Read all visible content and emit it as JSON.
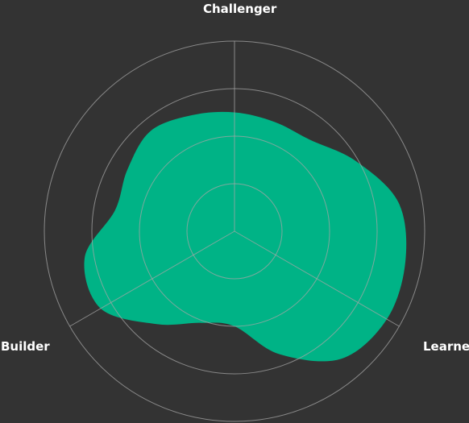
{
  "chart_data": {
    "type": "radar",
    "axes": [
      "Challenger",
      "Learner",
      "Builder"
    ],
    "max": 4,
    "rings": 4,
    "grid": true,
    "series": [
      {
        "fill": "#00b386"
      }
    ],
    "shape_radii": [
      {
        "angle_deg": 0,
        "value": 2.5
      },
      {
        "angle_deg": 20,
        "value": 2.45
      },
      {
        "angle_deg": 40,
        "value": 2.5
      },
      {
        "angle_deg": 60,
        "value": 2.95
      },
      {
        "angle_deg": 80,
        "value": 3.5
      },
      {
        "angle_deg": 100,
        "value": 3.65
      },
      {
        "angle_deg": 120,
        "value": 3.7
      },
      {
        "angle_deg": 140,
        "value": 3.5
      },
      {
        "angle_deg": 160,
        "value": 2.75
      },
      {
        "angle_deg": 180,
        "value": 2.0
      },
      {
        "angle_deg": 200,
        "value": 2.05
      },
      {
        "angle_deg": 220,
        "value": 2.55
      },
      {
        "angle_deg": 240,
        "value": 3.25
      },
      {
        "angle_deg": 260,
        "value": 3.2
      },
      {
        "angle_deg": 280,
        "value": 2.55
      },
      {
        "angle_deg": 300,
        "value": 2.6
      },
      {
        "angle_deg": 320,
        "value": 2.75
      },
      {
        "angle_deg": 340,
        "value": 2.6
      }
    ]
  },
  "colors": {
    "background": "#333333",
    "grid": "#a6a6a6",
    "fill": "#00b386",
    "label": "#ffffff"
  }
}
